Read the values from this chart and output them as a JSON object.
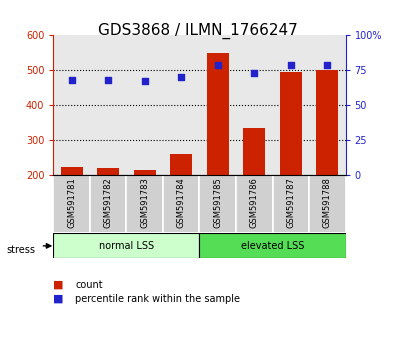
{
  "title": "GDS3868 / ILMN_1766247",
  "categories": [
    "GSM591781",
    "GSM591782",
    "GSM591783",
    "GSM591784",
    "GSM591785",
    "GSM591786",
    "GSM591787",
    "GSM591788"
  ],
  "bar_values": [
    222,
    220,
    215,
    260,
    550,
    335,
    495,
    500
  ],
  "scatter_values": [
    68,
    68,
    67,
    70,
    79,
    73,
    79,
    79
  ],
  "bar_color": "#CC2200",
  "scatter_color": "#2222CC",
  "ylim_left": [
    200,
    600
  ],
  "ylim_right": [
    0,
    100
  ],
  "yticks_left": [
    200,
    300,
    400,
    500,
    600
  ],
  "yticks_right": [
    0,
    25,
    50,
    75,
    100
  ],
  "ylabel_left_color": "#CC2200",
  "ylabel_right_color": "#2222CC",
  "groups": [
    {
      "label": "normal LSS",
      "start": 0,
      "end": 4,
      "color": "#CCFFCC"
    },
    {
      "label": "elevated LSS",
      "start": 4,
      "end": 8,
      "color": "#55DD55"
    }
  ],
  "stress_label": "stress",
  "legend_count_label": "count",
  "legend_pct_label": "percentile rank within the sample",
  "background_color": "#FFFFFF",
  "plot_bg_color": "#E8E8E8",
  "title_fontsize": 11,
  "tick_fontsize": 7,
  "gsm_fontsize": 6,
  "group_fontsize": 7,
  "legend_fontsize": 7
}
